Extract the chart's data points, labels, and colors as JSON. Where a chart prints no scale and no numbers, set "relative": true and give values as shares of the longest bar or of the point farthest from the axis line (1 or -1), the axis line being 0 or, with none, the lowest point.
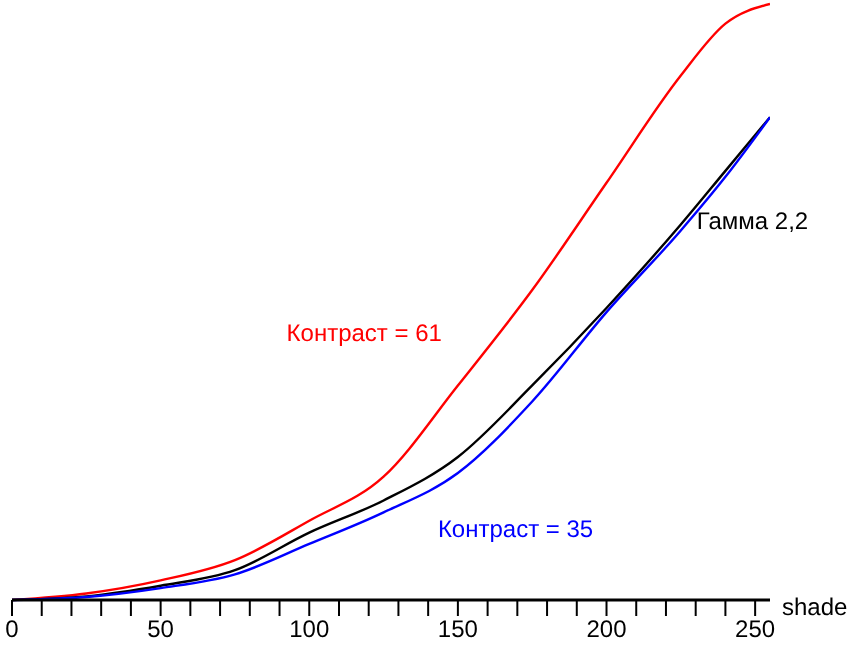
{
  "chart_data": {
    "type": "line",
    "relative": true,
    "xlabel": "shade",
    "x": [
      0,
      25,
      50,
      75,
      100,
      125,
      150,
      175,
      200,
      225,
      240,
      255
    ],
    "xlim": [
      0,
      255
    ],
    "xticks": [
      0,
      {
        "value": 10,
        "label": null
      },
      {
        "value": 20,
        "label": null
      },
      {
        "value": 30,
        "label": null
      },
      {
        "value": 40,
        "label": null
      },
      50,
      {
        "value": 60,
        "label": null
      },
      {
        "value": 70,
        "label": null
      },
      {
        "value": 80,
        "label": null
      },
      {
        "value": 90,
        "label": null
      },
      100,
      {
        "value": 110,
        "label": null
      },
      {
        "value": 120,
        "label": null
      },
      {
        "value": 130,
        "label": null
      },
      {
        "value": 140,
        "label": null
      },
      150,
      {
        "value": 160,
        "label": null
      },
      {
        "value": 170,
        "label": null
      },
      {
        "value": 180,
        "label": null
      },
      {
        "value": 190,
        "label": null
      },
      200,
      {
        "value": 210,
        "label": null
      },
      {
        "value": 220,
        "label": null
      },
      {
        "value": 230,
        "label": null
      },
      {
        "value": 240,
        "label": null
      },
      250
    ],
    "grid": false,
    "legend": false,
    "marker": "none",
    "line_style": "solid",
    "series": [
      {
        "name": "Контраст = 61",
        "color": "#ff0000",
        "values": [
          0,
          0.011,
          0.033,
          0.067,
          0.133,
          0.207,
          0.36,
          0.52,
          0.7,
          0.88,
          0.967,
          1
        ]
      },
      {
        "name": "Гамма 2,2",
        "color": "#000000",
        "values": [
          0,
          0.006,
          0.024,
          0.05,
          0.113,
          0.167,
          0.24,
          0.36,
          0.49,
          0.63,
          0.72,
          0.81
        ]
      },
      {
        "name": "Контраст = 35",
        "color": "#0000ff",
        "values": [
          0,
          0.005,
          0.02,
          0.043,
          0.094,
          0.147,
          0.213,
          0.333,
          0.483,
          0.62,
          0.71,
          0.81
        ]
      }
    ]
  }
}
